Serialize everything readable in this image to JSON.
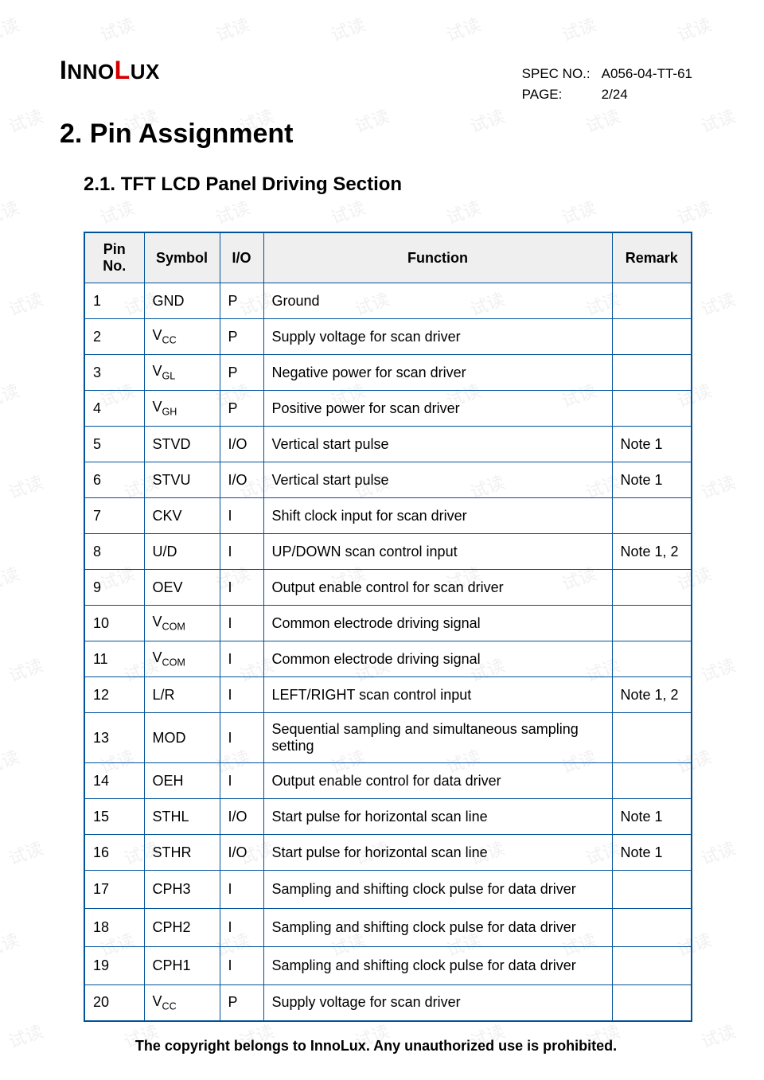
{
  "logo": {
    "p1": "I",
    "p2": "NNO",
    "p3": "L",
    "p4": "UX"
  },
  "spec": {
    "label1": "SPEC NO.:",
    "value1": "A056-04-TT-61",
    "label2": "PAGE:",
    "value2": "2/24"
  },
  "h1": "2. Pin Assignment",
  "h2": "2.1.    TFT LCD Panel Driving Section",
  "columns": {
    "c1": "Pin No.",
    "c2": "Symbol",
    "c3": "I/O",
    "c4": "Function",
    "c5": "Remark"
  },
  "rows": [
    {
      "pin": "1",
      "sym": "GND",
      "sub": "",
      "io": "P",
      "func": "Ground",
      "rem": ""
    },
    {
      "pin": "2",
      "sym": "V",
      "sub": "CC",
      "io": "P",
      "func": "Supply voltage for scan driver",
      "rem": ""
    },
    {
      "pin": "3",
      "sym": "V",
      "sub": "GL",
      "io": "P",
      "func": "Negative power for scan driver",
      "rem": ""
    },
    {
      "pin": "4",
      "sym": "V",
      "sub": "GH",
      "io": "P",
      "func": "Positive power for scan driver",
      "rem": ""
    },
    {
      "pin": "5",
      "sym": "STVD",
      "sub": "",
      "io": "I/O",
      "func": "Vertical start pulse",
      "rem": "Note 1"
    },
    {
      "pin": "6",
      "sym": "STVU",
      "sub": "",
      "io": "I/O",
      "func": "Vertical start pulse",
      "rem": "Note 1"
    },
    {
      "pin": "7",
      "sym": "CKV",
      "sub": "",
      "io": "I",
      "func": "Shift clock input for scan driver",
      "rem": ""
    },
    {
      "pin": "8",
      "sym": "U/D",
      "sub": "",
      "io": "I",
      "func": "UP/DOWN scan control input",
      "rem": "Note 1, 2"
    },
    {
      "pin": "9",
      "sym": "OEV",
      "sub": "",
      "io": "I",
      "func": "Output enable control for scan driver",
      "rem": ""
    },
    {
      "pin": "10",
      "sym": "V",
      "sub": "COM",
      "io": "I",
      "func": "Common electrode driving signal",
      "rem": ""
    },
    {
      "pin": "11",
      "sym": "V",
      "sub": "COM",
      "io": "I",
      "func": "Common electrode driving signal",
      "rem": ""
    },
    {
      "pin": "12",
      "sym": "L/R",
      "sub": "",
      "io": "I",
      "func": "LEFT/RIGHT scan control input",
      "rem": "Note 1, 2"
    },
    {
      "pin": "13",
      "sym": "MOD",
      "sub": "",
      "io": "I",
      "func": "Sequential sampling and simultaneous sampling setting",
      "rem": ""
    },
    {
      "pin": "14",
      "sym": "OEH",
      "sub": "",
      "io": "I",
      "func": "Output enable control for data driver",
      "rem": ""
    },
    {
      "pin": "15",
      "sym": "STHL",
      "sub": "",
      "io": "I/O",
      "func": "Start pulse for horizontal scan line",
      "rem": "Note 1"
    },
    {
      "pin": "16",
      "sym": "STHR",
      "sub": "",
      "io": "I/O",
      "func": "Start pulse for horizontal scan line",
      "rem": "Note 1"
    },
    {
      "pin": "17",
      "sym": "CPH3",
      "sub": "",
      "io": "I",
      "func": "Sampling and shifting clock pulse for data driver",
      "rem": ""
    },
    {
      "pin": "18",
      "sym": "CPH2",
      "sub": "",
      "io": "I",
      "func": "Sampling and shifting clock pulse for data driver",
      "rem": ""
    },
    {
      "pin": "19",
      "sym": "CPH1",
      "sub": "",
      "io": "I",
      "func": "Sampling and shifting clock pulse for data driver",
      "rem": ""
    },
    {
      "pin": "20",
      "sym": "V",
      "sub": "CC",
      "io": "P",
      "func": "Supply voltage for scan driver",
      "rem": ""
    }
  ],
  "footer": "The copyright belongs to InnoLux. Any unauthorized use is prohibited.",
  "watermark_text": "试读"
}
